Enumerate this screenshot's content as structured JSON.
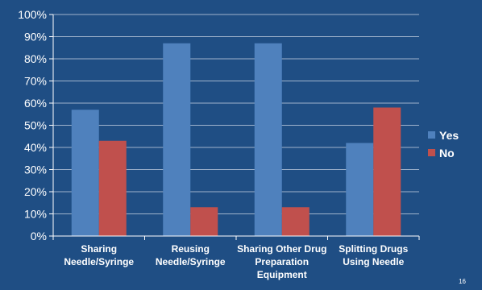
{
  "chart_data": {
    "type": "bar",
    "categories": [
      [
        "Sharing",
        "Needle/Syringe"
      ],
      [
        "Reusing",
        "Needle/Syringe"
      ],
      [
        "Sharing Other Drug",
        "Preparation",
        "Equipment"
      ],
      [
        "Splitting Drugs",
        "Using Needle"
      ]
    ],
    "series": [
      {
        "name": "Yes",
        "color": "#4f81bd",
        "values": [
          57,
          87,
          87,
          42
        ]
      },
      {
        "name": "No",
        "color": "#c0504d",
        "values": [
          43,
          13,
          13,
          58
        ]
      }
    ],
    "yticks": [
      "0%",
      "10%",
      "20%",
      "30%",
      "40%",
      "50%",
      "60%",
      "70%",
      "80%",
      "90%",
      "100%"
    ],
    "ylim": [
      0,
      100
    ],
    "grid": true,
    "legend_position": "right",
    "title": "",
    "xlabel": "",
    "ylabel": ""
  },
  "page_number": "16",
  "colors": {
    "background": "#1f4e84",
    "gridline": "#9fb3cc",
    "axis": "#ffffff"
  }
}
